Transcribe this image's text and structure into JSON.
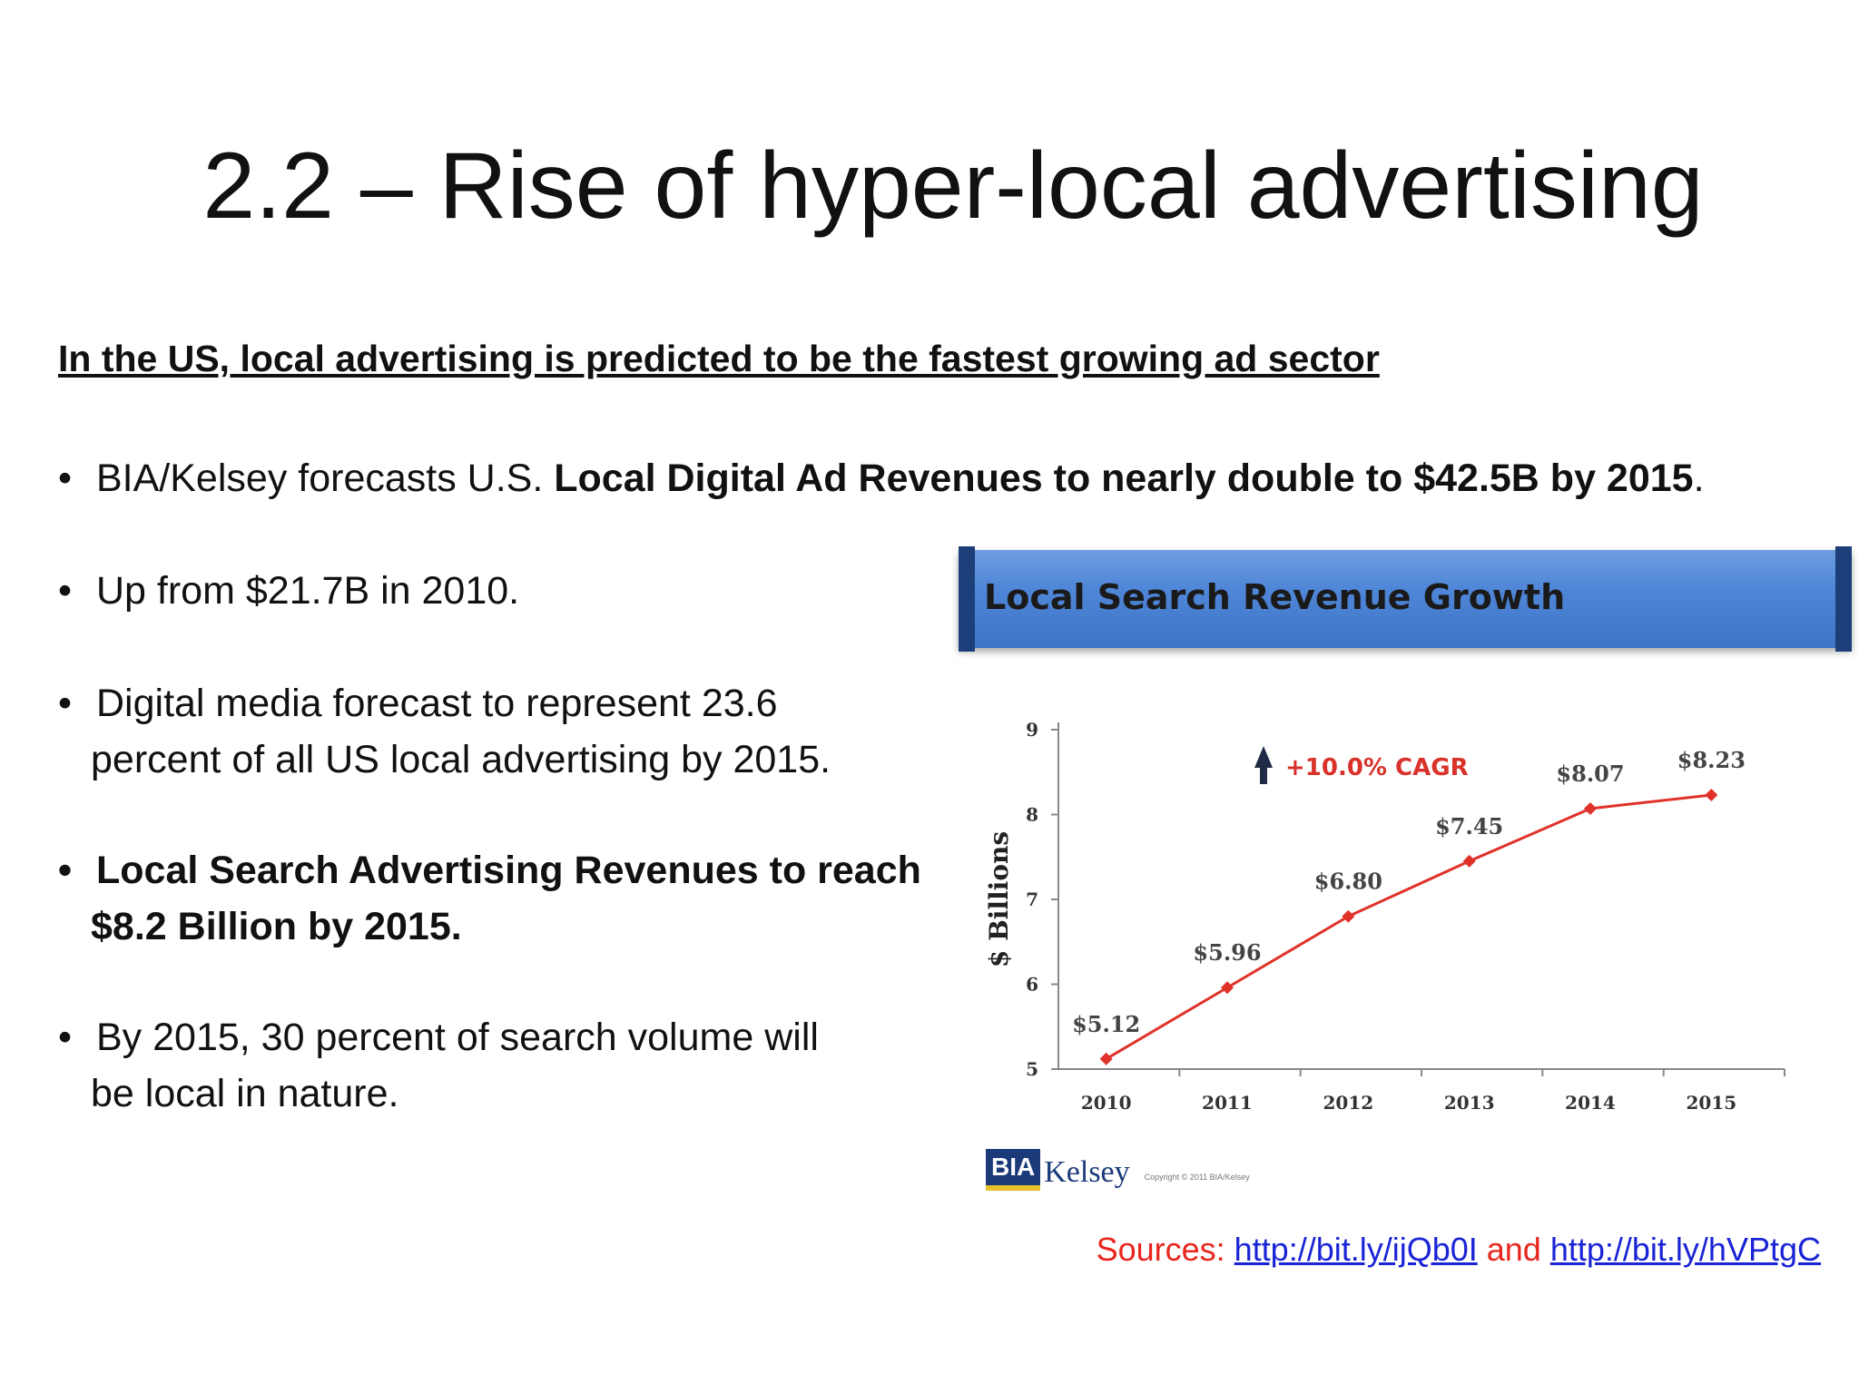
{
  "slide": {
    "title": "2.2 – Rise of hyper-local advertising",
    "subheading": "In the US, local advertising is predicted to be the fastest growing ad sector"
  },
  "bullets": {
    "b1": {
      "plain": "BIA/Kelsey forecasts U.S. ",
      "bold": "Local Digital Ad Revenues to nearly double to $42.5B by 2015",
      "end": "."
    },
    "b2": {
      "text": "Up from $21.7B in 2010."
    },
    "b3": {
      "line1": "Digital media forecast to represent 23.6",
      "line2": "percent of all US local advertising by 2015."
    },
    "b4": {
      "line1": "Local Search Advertising Revenues to reach",
      "line2": "$8.2 Billion by 2015."
    },
    "b5": {
      "line1": "By 2015, 30 percent of search volume will",
      "line2": "be local in nature."
    },
    "marker": "•"
  },
  "chart_data": {
    "type": "line",
    "title": "Local Search Revenue Growth",
    "xlabel": "",
    "ylabel": "$ Billions",
    "categories": [
      "2010",
      "2011",
      "2012",
      "2013",
      "2014",
      "2015"
    ],
    "values": [
      5.12,
      5.96,
      6.8,
      7.45,
      8.07,
      8.23
    ],
    "value_labels": [
      "$5.12",
      "$5.96",
      "$6.80",
      "$7.45",
      "$8.07",
      "$8.23"
    ],
    "yticks": [
      5,
      6,
      7,
      8,
      9
    ],
    "ylim": [
      5,
      9
    ],
    "annotation": "+10.0% CAGR",
    "line_color": "#e0322a",
    "marker_color": "#e0322a"
  },
  "logo": {
    "box": "BIA",
    "name": "Kelsey",
    "copyright": "Copyright © 2011 BIA/Kelsey"
  },
  "sources": {
    "label": "Sources: ",
    "link1": "http://bit.ly/ijQb0I",
    "and": " and ",
    "link2": "http://bit.ly/hVPtgC"
  }
}
